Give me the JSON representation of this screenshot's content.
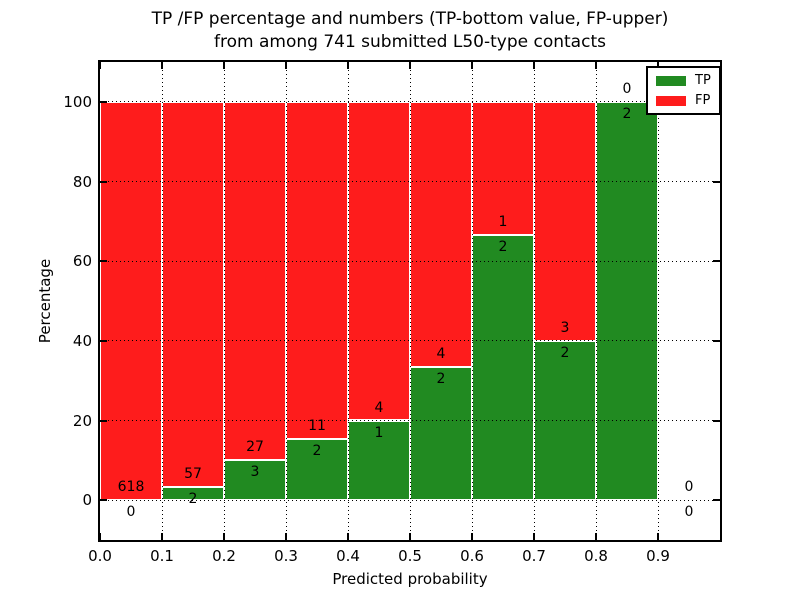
{
  "figure": {
    "title_line1": "TP /FP percentage and numbers (TP-bottom value, FP-upper)",
    "title_line2": "from among 741 submitted L50-type contacts"
  },
  "chart_data": {
    "type": "bar",
    "stacked": true,
    "normalized_to_percent": true,
    "title": "TP /FP percentage and numbers (TP-bottom value, FP-upper)\nfrom among 741 submitted L50-type contacts",
    "xlabel": "Predicted probability",
    "ylabel": "Percentage",
    "xlim": [
      0.0,
      1.0
    ],
    "ylim": [
      -10,
      110
    ],
    "grid": true,
    "grid_style": "dotted",
    "bin_edges": [
      0.0,
      0.1,
      0.2,
      0.3,
      0.4,
      0.5,
      0.6,
      0.7,
      0.8,
      0.9,
      1.0
    ],
    "series": [
      {
        "name": "TP",
        "color": "#218a21",
        "counts": [
          0,
          2,
          3,
          2,
          1,
          2,
          2,
          2,
          2,
          0
        ]
      },
      {
        "name": "FP",
        "color": "#fe1c1c",
        "counts": [
          618,
          57,
          27,
          11,
          4,
          4,
          1,
          3,
          0,
          0
        ]
      }
    ],
    "tp_percent_per_bin": [
      0,
      3.39,
      10,
      15.38,
      20,
      33.33,
      66.67,
      40,
      100,
      null
    ],
    "xticks": {
      "values": [
        0.0,
        0.1,
        0.2,
        0.3,
        0.4,
        0.5,
        0.6,
        0.7,
        0.8,
        0.9
      ],
      "labels": [
        "0.0",
        "0.1",
        "0.2",
        "0.3",
        "0.4",
        "0.5",
        "0.6",
        "0.7",
        "0.8",
        "0.9"
      ]
    },
    "yticks": {
      "values": [
        0,
        20,
        40,
        60,
        80,
        100
      ],
      "labels": [
        "0",
        "20",
        "40",
        "60",
        "80",
        "100"
      ]
    },
    "legend": {
      "position": "upper right",
      "entries": [
        {
          "label": "TP",
          "color": "#218a21"
        },
        {
          "label": "FP",
          "color": "#fe1c1c"
        }
      ]
    }
  }
}
